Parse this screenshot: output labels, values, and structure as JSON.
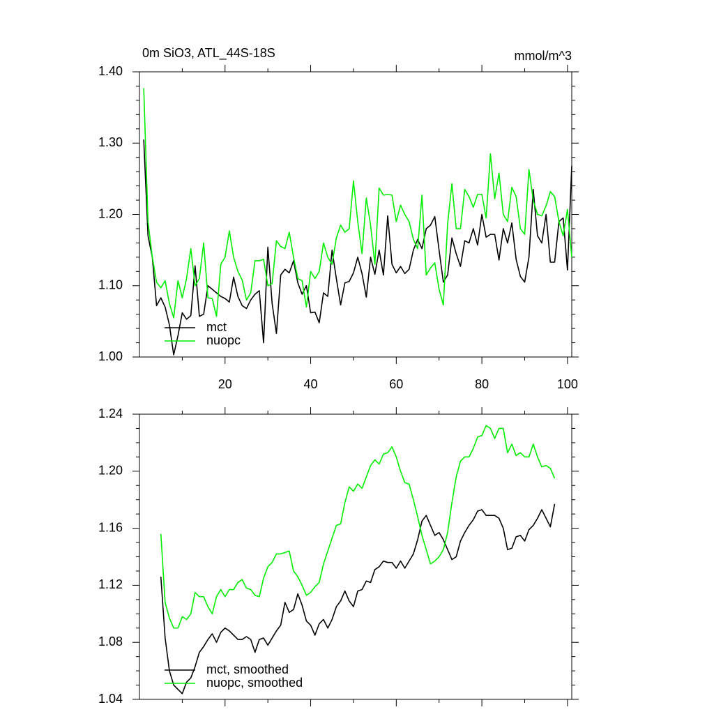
{
  "chart_data": [
    {
      "type": "line",
      "title": "0m SiO3, ATL_44S-18S",
      "units": "mmol/m^3",
      "x": [
        1,
        2,
        3,
        4,
        5,
        6,
        7,
        8,
        9,
        10,
        11,
        12,
        13,
        14,
        15,
        16,
        17,
        18,
        19,
        20,
        21,
        22,
        23,
        24,
        25,
        26,
        27,
        28,
        29,
        30,
        31,
        32,
        33,
        34,
        35,
        36,
        37,
        38,
        39,
        40,
        41,
        42,
        43,
        44,
        45,
        46,
        47,
        48,
        49,
        50,
        51,
        52,
        53,
        54,
        55,
        56,
        57,
        58,
        59,
        60,
        61,
        62,
        63,
        64,
        65,
        66,
        67,
        68,
        69,
        70,
        71,
        72,
        73,
        74,
        75,
        76,
        77,
        78,
        79,
        80,
        81,
        82,
        83,
        84,
        85,
        86,
        87,
        88,
        89,
        90,
        91,
        92,
        93,
        94,
        95,
        96,
        97,
        98,
        99,
        100,
        101
      ],
      "series": [
        {
          "name": "mct",
          "color": "#000000",
          "values": [
            1.305,
            1.17,
            1.14,
            1.072,
            1.083,
            1.07,
            1.045,
            1.003,
            1.03,
            1.062,
            1.053,
            1.058,
            1.128,
            1.057,
            1.06,
            1.1,
            1.095,
            1.09,
            1.085,
            1.082,
            1.077,
            1.112,
            1.085,
            1.072,
            1.068,
            1.08,
            1.088,
            1.093,
            1.02,
            1.154,
            1.075,
            1.033,
            1.115,
            1.123,
            1.118,
            1.135,
            1.104,
            1.088,
            1.1,
            1.062,
            1.063,
            1.048,
            1.09,
            1.085,
            1.15,
            1.11,
            1.073,
            1.104,
            1.106,
            1.118,
            1.14,
            1.117,
            1.084,
            1.14,
            1.116,
            1.15,
            1.115,
            1.198,
            1.13,
            1.118,
            1.127,
            1.117,
            1.123,
            1.15,
            1.165,
            1.152,
            1.18,
            1.185,
            1.197,
            1.15,
            1.105,
            1.115,
            1.167,
            1.145,
            1.127,
            1.163,
            1.16,
            1.18,
            1.157,
            1.2,
            1.168,
            1.172,
            1.172,
            1.136,
            1.18,
            1.16,
            1.188,
            1.137,
            1.113,
            1.105,
            1.14,
            1.235,
            1.17,
            1.16,
            1.2,
            1.133,
            1.133,
            1.19,
            1.195,
            1.122,
            1.268
          ]
        },
        {
          "name": "nuopc",
          "color": "#00ee00",
          "values": [
            1.377,
            1.19,
            1.14,
            1.105,
            1.097,
            1.107,
            1.075,
            1.055,
            1.107,
            1.083,
            1.11,
            1.152,
            1.1,
            1.11,
            1.16,
            1.083,
            1.082,
            1.057,
            1.13,
            1.14,
            1.177,
            1.14,
            1.12,
            1.108,
            1.08,
            1.09,
            1.135,
            1.135,
            1.137,
            1.1,
            1.103,
            1.163,
            1.155,
            1.152,
            1.175,
            1.14,
            1.11,
            1.107,
            1.07,
            1.12,
            1.11,
            1.12,
            1.16,
            1.14,
            1.13,
            1.167,
            1.185,
            1.175,
            1.18,
            1.247,
            1.19,
            1.145,
            1.223,
            1.185,
            1.13,
            1.237,
            1.227,
            1.228,
            1.227,
            1.19,
            1.213,
            1.2,
            1.19,
            1.165,
            1.152,
            1.227,
            1.115,
            1.125,
            1.132,
            1.095,
            1.073,
            1.187,
            1.243,
            1.18,
            1.18,
            1.235,
            1.225,
            1.21,
            1.228,
            1.228,
            1.195,
            1.285,
            1.222,
            1.258,
            1.2,
            1.19,
            1.238,
            1.225,
            1.18,
            1.172,
            1.263,
            1.22,
            1.2,
            1.198,
            1.212,
            1.232,
            1.225,
            1.19,
            1.17,
            1.207,
            1.14
          ]
        }
      ],
      "xlim": [
        0,
        101
      ],
      "xticks": [
        20,
        40,
        60,
        80,
        100
      ],
      "xminorticks": [
        10,
        30,
        50,
        70,
        90
      ],
      "show_xtick_labels": true,
      "ylim": [
        1.0,
        1.4
      ],
      "yticks": [
        {
          "value": 1.0,
          "label": "1.00"
        },
        {
          "value": 1.1,
          "label": "1.10"
        },
        {
          "value": 1.2,
          "label": "1.20"
        },
        {
          "value": 1.3,
          "label": "1.30"
        },
        {
          "value": 1.4,
          "label": "1.40"
        }
      ],
      "yminorticks": [
        1.02,
        1.04,
        1.06,
        1.08,
        1.12,
        1.14,
        1.16,
        1.18,
        1.22,
        1.24,
        1.26,
        1.28,
        1.32,
        1.34,
        1.36,
        1.38
      ],
      "legend": "lower left",
      "grid": false
    },
    {
      "type": "line",
      "x": [
        5,
        6,
        7,
        8,
        9,
        10,
        11,
        12,
        13,
        14,
        15,
        16,
        17,
        18,
        19,
        20,
        21,
        22,
        23,
        24,
        25,
        26,
        27,
        28,
        29,
        30,
        31,
        32,
        33,
        34,
        35,
        36,
        37,
        38,
        39,
        40,
        41,
        42,
        43,
        44,
        45,
        46,
        47,
        48,
        49,
        50,
        51,
        52,
        53,
        54,
        55,
        56,
        57,
        58,
        59,
        60,
        61,
        62,
        63,
        64,
        65,
        66,
        67,
        68,
        69,
        70,
        71,
        72,
        73,
        74,
        75,
        76,
        77,
        78,
        79,
        80,
        81,
        82,
        83,
        84,
        85,
        86,
        87,
        88,
        89,
        90,
        91,
        92,
        93,
        94,
        95,
        96,
        97
      ],
      "series": [
        {
          "name": "mct, smoothed",
          "color": "#000000",
          "values": [
            1.126,
            1.083,
            1.06,
            1.05,
            1.047,
            1.044,
            1.052,
            1.055,
            1.063,
            1.073,
            1.077,
            1.082,
            1.086,
            1.08,
            1.087,
            1.09,
            1.088,
            1.085,
            1.082,
            1.082,
            1.084,
            1.082,
            1.073,
            1.082,
            1.083,
            1.078,
            1.083,
            1.088,
            1.092,
            1.108,
            1.101,
            1.103,
            1.114,
            1.106,
            1.095,
            1.092,
            1.085,
            1.093,
            1.096,
            1.09,
            1.096,
            1.105,
            1.109,
            1.116,
            1.109,
            1.105,
            1.116,
            1.117,
            1.123,
            1.122,
            1.131,
            1.133,
            1.137,
            1.136,
            1.136,
            1.132,
            1.137,
            1.132,
            1.137,
            1.142,
            1.152,
            1.165,
            1.169,
            1.162,
            1.155,
            1.157,
            1.152,
            1.145,
            1.138,
            1.14,
            1.151,
            1.157,
            1.162,
            1.166,
            1.172,
            1.173,
            1.169,
            1.169,
            1.169,
            1.167,
            1.16,
            1.145,
            1.146,
            1.154,
            1.155,
            1.151,
            1.159,
            1.162,
            1.167,
            1.173,
            1.167,
            1.161,
            1.177
          ]
        },
        {
          "name": "nuopc, smoothed",
          "color": "#00ee00",
          "values": [
            1.156,
            1.108,
            1.097,
            1.09,
            1.09,
            1.098,
            1.096,
            1.1,
            1.115,
            1.112,
            1.112,
            1.105,
            1.1,
            1.112,
            1.117,
            1.112,
            1.117,
            1.117,
            1.122,
            1.124,
            1.118,
            1.117,
            1.113,
            1.112,
            1.125,
            1.133,
            1.136,
            1.142,
            1.142,
            1.143,
            1.144,
            1.13,
            1.126,
            1.12,
            1.113,
            1.115,
            1.119,
            1.122,
            1.135,
            1.144,
            1.153,
            1.162,
            1.163,
            1.178,
            1.189,
            1.186,
            1.191,
            1.188,
            1.196,
            1.204,
            1.208,
            1.205,
            1.212,
            1.213,
            1.217,
            1.21,
            1.2,
            1.192,
            1.191,
            1.18,
            1.168,
            1.155,
            1.145,
            1.135,
            1.137,
            1.14,
            1.145,
            1.157,
            1.178,
            1.196,
            1.207,
            1.21,
            1.21,
            1.216,
            1.224,
            1.225,
            1.232,
            1.23,
            1.223,
            1.23,
            1.23,
            1.213,
            1.219,
            1.211,
            1.213,
            1.21,
            1.21,
            1.219,
            1.21,
            1.203,
            1.204,
            1.202,
            1.195
          ]
        }
      ],
      "xlim": [
        0,
        101
      ],
      "xticks": [
        20,
        40,
        60,
        80,
        100
      ],
      "xminorticks": [
        10,
        30,
        50,
        70,
        90
      ],
      "show_xtick_labels": false,
      "ylim": [
        1.04,
        1.24
      ],
      "yticks": [
        {
          "value": 1.04,
          "label": "1.04"
        },
        {
          "value": 1.08,
          "label": "1.08"
        },
        {
          "value": 1.12,
          "label": "1.12"
        },
        {
          "value": 1.16,
          "label": "1.16"
        },
        {
          "value": 1.2,
          "label": "1.20"
        },
        {
          "value": 1.24,
          "label": "1.24"
        }
      ],
      "yminorticks": [
        1.05,
        1.06,
        1.07,
        1.09,
        1.1,
        1.11,
        1.13,
        1.14,
        1.15,
        1.17,
        1.18,
        1.19,
        1.21,
        1.22,
        1.23
      ],
      "legend": "lower left",
      "grid": false
    }
  ]
}
